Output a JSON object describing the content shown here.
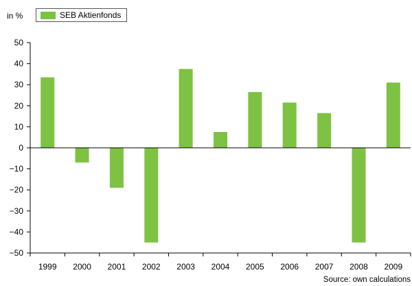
{
  "unit_label": "in %",
  "source": "Source: own calculations",
  "colors": {
    "bar": "#7dc242",
    "axis": "#000000"
  },
  "chart_data": {
    "type": "bar",
    "categories": [
      "1999",
      "2000",
      "2001",
      "2002",
      "2003",
      "2004",
      "2005",
      "2006",
      "2007",
      "2008",
      "2009"
    ],
    "series": [
      {
        "name": "SEB Aktienfonds",
        "values": [
          33.5,
          -7,
          -19,
          -45,
          37.5,
          7.5,
          26.5,
          21.5,
          16.5,
          -45,
          31
        ]
      }
    ],
    "ylim": [
      -50,
      50
    ],
    "yticks": [
      50,
      40,
      30,
      20,
      10,
      0,
      -10,
      -20,
      -30,
      -40,
      -50
    ],
    "ytick_labels": [
      "50",
      "40",
      "30",
      "20",
      "10",
      "0",
      "−10",
      "−20",
      "−30",
      "−40",
      "−50"
    ],
    "grid": false,
    "legend": "top-left",
    "title": "",
    "xlabel": "",
    "ylabel": "in %"
  }
}
